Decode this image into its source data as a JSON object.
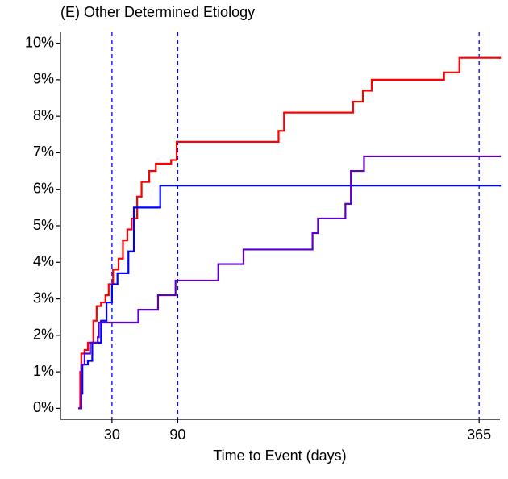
{
  "chart_data": {
    "type": "step",
    "title": "(E) Other Determined Etiology",
    "x_label": "Time to Event (days)",
    "xlim": [
      -17,
      384
    ],
    "xticks": [
      30,
      90,
      365
    ],
    "ylim": [
      -0.3,
      10.3
    ],
    "yticks": [
      {
        "value": 0,
        "label": "0%"
      },
      {
        "value": 1,
        "label": "1%"
      },
      {
        "value": 2,
        "label": "2%"
      },
      {
        "value": 3,
        "label": "3%"
      },
      {
        "value": 4,
        "label": "4%"
      },
      {
        "value": 5,
        "label": "5%"
      },
      {
        "value": 6,
        "label": "6%"
      },
      {
        "value": 7,
        "label": "7%"
      },
      {
        "value": 8,
        "label": "8%"
      },
      {
        "value": 9,
        "label": "9%"
      },
      {
        "value": 10,
        "label": "10%"
      }
    ],
    "vlines": [
      30,
      90,
      365
    ],
    "vline_color": "#0000ff",
    "series": [
      {
        "color": "#ff0000",
        "x": [
          0,
          1,
          2,
          5,
          8,
          13,
          16,
          20,
          24,
          27,
          31,
          36,
          40,
          44,
          48,
          53,
          57,
          64,
          70,
          84,
          89,
          182,
          187,
          250,
          259,
          267,
          333,
          347,
          384
        ],
        "values": [
          0,
          1.0,
          1.5,
          1.6,
          1.8,
          2.4,
          2.8,
          2.9,
          3.1,
          3.4,
          3.8,
          4.1,
          4.6,
          4.9,
          5.2,
          5.8,
          6.2,
          6.5,
          6.7,
          6.8,
          7.3,
          7.6,
          8.1,
          8.4,
          8.7,
          9.0,
          9.2,
          9.6,
          9.6
        ]
      },
      {
        "color": "#0000ff",
        "x": [
          0,
          2,
          3,
          8,
          12,
          20,
          25,
          30,
          35,
          45,
          50,
          74,
          384
        ],
        "values": [
          0,
          0.4,
          1.2,
          1.3,
          1.8,
          2.4,
          2.9,
          3.4,
          3.7,
          4.3,
          5.5,
          6.1,
          6.1
        ]
      },
      {
        "color": "#5a00c8",
        "x": [
          0,
          2,
          5,
          10,
          17,
          18,
          54,
          72,
          88,
          127,
          150,
          213,
          218,
          243,
          248,
          260,
          384
        ],
        "values": [
          0,
          1.2,
          1.5,
          1.8,
          1.95,
          2.35,
          2.7,
          3.1,
          3.5,
          3.95,
          4.35,
          4.8,
          5.2,
          5.6,
          6.5,
          6.9,
          6.9
        ]
      }
    ]
  }
}
